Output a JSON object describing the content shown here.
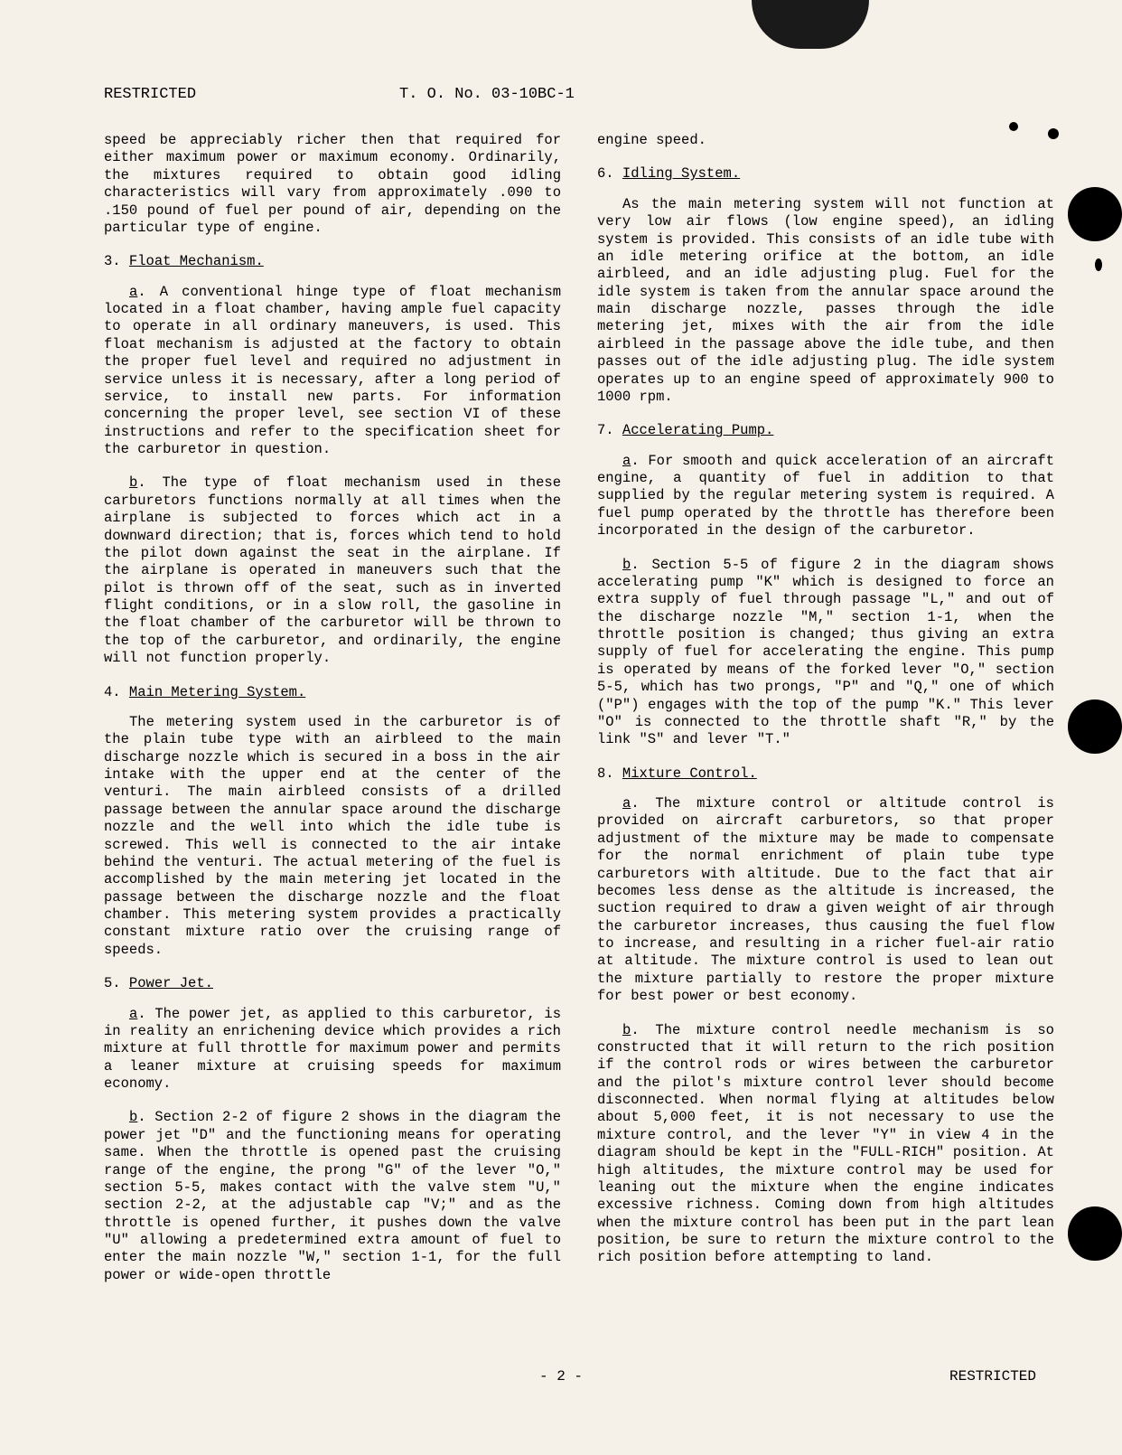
{
  "header": {
    "classification": "RESTRICTED",
    "docNumber": "T. O. No. 03-10BC-1"
  },
  "leftColumn": {
    "para1": "speed be appreciably richer then that required for either maximum power or maximum economy. Ordinarily, the mixtures required to obtain good idling characteristics will vary from approximately .090 to .150 pound of fuel per pound of air, depending on the particular type of engine.",
    "sec3": {
      "num": "3.",
      "title": "Float Mechanism."
    },
    "para3a_letter": "a",
    "para3a": ". A conventional hinge type of float mechanism located in a float chamber, having ample fuel capacity to operate in all ordinary maneuvers, is used. This float mechanism is adjusted at the factory to obtain the proper fuel level and required no adjustment in service unless it is necessary, after a long period of service, to install new parts. For information concerning the proper level, see section VI of these instructions and refer to the specification sheet for the carburetor in question.",
    "para3b_letter": "b",
    "para3b": ". The type of float mechanism used in these carburetors functions normally at all times when the airplane is subjected to forces which act in a downward direction; that is, forces which tend to hold the pilot down against the seat in the airplane. If the airplane is operated in maneuvers such that the pilot is thrown off of the seat, such as in inverted flight conditions, or in a slow roll, the gasoline in the float chamber of the carburetor will be thrown to the top of the carburetor, and ordinarily, the engine will not function properly.",
    "sec4": {
      "num": "4.",
      "title": "Main Metering System."
    },
    "para4": "The metering system used in the carburetor is of the plain tube type with an airbleed to the main discharge nozzle which is secured in a boss in the air intake with the upper end at the center of the venturi. The main airbleed consists of a drilled passage between the annular space around the discharge nozzle and the well into which the idle tube is screwed. This well is connected to the air intake behind the venturi. The actual metering of the fuel is accomplished by the main metering jet located in the passage between the discharge nozzle and the float chamber. This metering system provides a practically constant mixture ratio over the cruising range of speeds.",
    "sec5": {
      "num": "5.",
      "title": "Power Jet."
    },
    "para5a_letter": "a",
    "para5a": ". The power jet, as applied to this carburetor, is in reality an enrichening device which provides a rich mixture at full throttle for maximum power and permits a leaner mixture at cruising speeds for maximum economy.",
    "para5b_letter": "b",
    "para5b": ". Section 2-2 of figure 2 shows in the diagram the power jet \"D\" and the functioning means for operating same. When the throttle is opened past the cruising range of the engine, the prong \"G\" of the lever \"O,\" section 5-5, makes contact with the valve stem \"U,\" section 2-2, at the adjustable cap \"V;\" and as the throttle is opened further, it pushes down the valve \"U\" allowing a predetermined extra amount of fuel to enter the main nozzle \"W,\" section 1-1, for the full power or wide-open throttle"
  },
  "rightColumn": {
    "para_cont": "engine speed.",
    "sec6": {
      "num": "6.",
      "title": "Idling System."
    },
    "para6": "As the main metering system will not function at very low air flows (low engine speed), an idling system is provided. This consists of an idle tube with an idle metering orifice at the bottom, an idle airbleed, and an idle adjusting plug. Fuel for the idle system is taken from the annular space around the main discharge nozzle, passes through the idle metering jet, mixes with the air from the idle airbleed in the passage above the idle tube, and then passes out of the idle adjusting plug. The idle system operates up to an engine speed of approximately 900 to 1000 rpm.",
    "sec7": {
      "num": "7.",
      "title": "Accelerating Pump."
    },
    "para7a_letter": "a",
    "para7a": ". For smooth and quick acceleration of an aircraft engine, a quantity of fuel in addition to that supplied by the regular metering system is required. A fuel pump operated by the throttle has therefore been incorporated in the design of the carburetor.",
    "para7b_letter": "b",
    "para7b": ". Section 5-5 of figure 2 in the diagram shows accelerating pump \"K\" which is designed to force an extra supply of fuel through passage \"L,\" and out of the discharge nozzle \"M,\" section 1-1, when the throttle position is changed; thus giving an extra supply of fuel for accelerating the engine. This pump is operated by means of the forked lever \"O,\" section 5-5, which has two prongs, \"P\" and \"Q,\" one of which (\"P\") engages with the top of the pump \"K.\" This lever \"O\" is connected to the throttle shaft \"R,\" by the link \"S\" and lever \"T.\"",
    "sec8": {
      "num": "8.",
      "title": "Mixture Control."
    },
    "para8a_letter": "a",
    "para8a": ". The mixture control or altitude control is provided on aircraft carburetors, so that proper adjustment of the mixture may be made to compensate for the normal enrichment of plain tube type carburetors with altitude. Due to the fact that air becomes less dense as the altitude is increased, the suction required to draw a given weight of air through the carburetor increases, thus causing the fuel flow to increase, and resulting in a richer fuel-air ratio at altitude. The mixture control is used to lean out the mixture partially to restore the proper mixture for best power or best economy.",
    "para8b_letter": "b",
    "para8b": ". The mixture control needle mechanism is so constructed that it will return to the rich position if the control rods or wires between the carburetor and the pilot's mixture control lever should become disconnected. When normal flying at altitudes below about 5,000 feet, it is not necessary to use the mixture control, and the lever \"Y\" in view 4 in the diagram should be kept in the \"FULL-RICH\" position. At high altitudes, the mixture control may be used for leaning out the mixture when the engine indicates excessive richness. Coming down from high altitudes when the mixture control has been put in the part lean position, be sure to return the mixture control to the rich position before attempting to land."
  },
  "footer": {
    "pageNum": "- 2 -",
    "classification": "RESTRICTED"
  }
}
